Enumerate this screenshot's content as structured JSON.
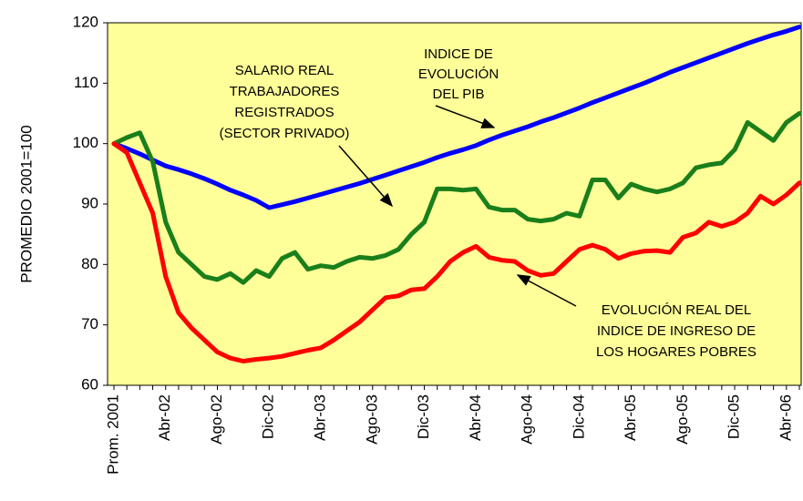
{
  "chart_data": {
    "type": "line",
    "y_label": "PROMEDIO 2001=100",
    "categories": [
      "Prom. 2001",
      null,
      null,
      null,
      "Abr-02",
      null,
      null,
      null,
      "Ago-02",
      null,
      null,
      null,
      "Dic-02",
      null,
      null,
      null,
      "Abr-03",
      null,
      null,
      null,
      "Ago-03",
      null,
      null,
      null,
      "Dic-03",
      null,
      null,
      null,
      "Abr-04",
      null,
      null,
      null,
      "Ago-04",
      null,
      null,
      null,
      "Dic-04",
      null,
      null,
      null,
      "Abr-05",
      null,
      null,
      null,
      "Ago-05",
      null,
      null,
      null,
      "Dic-05",
      null,
      null,
      null,
      "Abr-06",
      null
    ],
    "series": [
      {
        "color": "#0000ff",
        "values": [
          100,
          99.2,
          98.3,
          97.3,
          96.3,
          95.7,
          95,
          94.2,
          93.3,
          92.3,
          91.5,
          90.6,
          89.4,
          89.9,
          90.4,
          91.0,
          91.6,
          92.2,
          92.8,
          93.4,
          94.1,
          94.8,
          95.5,
          96.2,
          96.9,
          97.7,
          98.4,
          99.0,
          99.7,
          100.6,
          101.4,
          102.1,
          102.8,
          103.6,
          104.3,
          105.1,
          105.9,
          106.8,
          107.6,
          108.4,
          109.2,
          110.0,
          110.9,
          111.8,
          112.6,
          113.4,
          114.2,
          115.0,
          115.8,
          116.6,
          117.3,
          118.0,
          118.6,
          119.3
        ]
      },
      {
        "color": "#1a7f1a",
        "values": [
          100,
          101,
          101.8,
          97,
          87,
          82,
          80,
          78,
          77.5,
          78.5,
          77,
          79,
          78,
          81,
          82,
          79.2,
          79.8,
          79.5,
          80.5,
          81.2,
          81,
          81.5,
          82.5,
          85,
          87,
          92.5,
          92.5,
          92.3,
          92.5,
          89.5,
          89,
          89,
          87.5,
          87.2,
          87.5,
          88.5,
          88,
          94,
          94,
          91,
          93.3,
          92.5,
          92,
          92.5,
          93.5,
          96,
          96.5,
          96.8,
          99,
          103.5,
          102,
          100.5,
          103.5,
          105
        ]
      },
      {
        "color": "#ff0000",
        "values": [
          100,
          98.5,
          93.5,
          88.5,
          78,
          72,
          69.5,
          67.5,
          65.5,
          64.5,
          64,
          64.3,
          64.5,
          64.8,
          65.3,
          65.8,
          66.2,
          67.5,
          69,
          70.5,
          72.5,
          74.5,
          74.8,
          75.8,
          76,
          78,
          80.5,
          82,
          83,
          81.2,
          80.7,
          80.5,
          79,
          78.2,
          78.5,
          80.5,
          82.5,
          83.2,
          82.5,
          81,
          81.8,
          82.2,
          82.3,
          82,
          84.5,
          85.2,
          87,
          86.3,
          87,
          88.5,
          91.3,
          90,
          91.5,
          93.5
        ]
      }
    ],
    "ylim": [
      60,
      120
    ],
    "yticks": [
      60,
      70,
      80,
      90,
      100,
      110,
      120
    ],
    "plot_background": "#ffff99",
    "annotations": [
      {
        "lines": [
          "INDICE DE",
          "EVOLUCIÓN",
          "DEL PIB"
        ]
      },
      {
        "lines": [
          "SALARIO  REAL",
          "TRABAJADORES",
          "REGISTRADOS",
          "(SECTOR PRIVADO)"
        ]
      },
      {
        "lines": [
          "EVOLUCIÓN  REAL  DEL",
          "INDICE DE INGRESO DE",
          "LOS HOGARES POBRES"
        ]
      }
    ]
  }
}
